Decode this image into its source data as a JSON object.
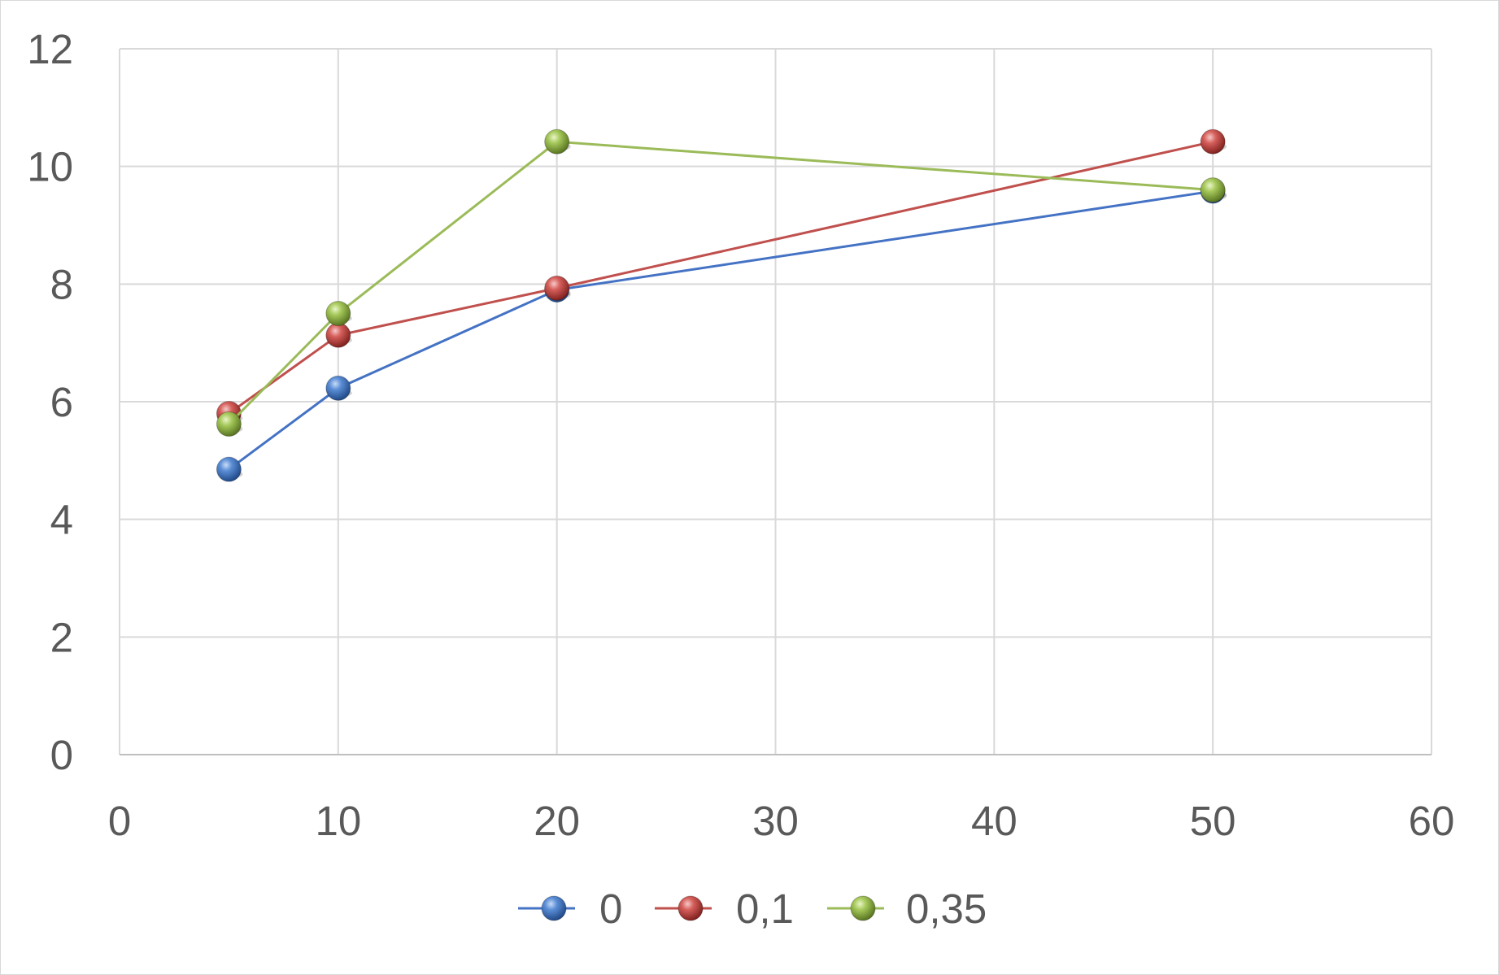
{
  "chart_data": {
    "type": "scatter",
    "mode": "lines+markers",
    "xlim": [
      0,
      60
    ],
    "ylim": [
      0,
      12
    ],
    "x_ticks": [
      "0",
      "10",
      "20",
      "30",
      "40",
      "50",
      "60"
    ],
    "y_ticks": [
      "0",
      "2",
      "4",
      "6",
      "8",
      "10",
      "12"
    ],
    "grid": true,
    "legend_position": "bottom",
    "series": [
      {
        "name": "0",
        "color": "#4472c4",
        "x": [
          5,
          10,
          20,
          50
        ],
        "y": [
          4.85,
          6.23,
          7.9,
          9.58
        ]
      },
      {
        "name": "0,1",
        "color": "#c0504d",
        "x": [
          5,
          10,
          20,
          50
        ],
        "y": [
          5.8,
          7.13,
          7.93,
          10.42
        ]
      },
      {
        "name": "0,35",
        "color": "#9bbb59",
        "x": [
          5,
          10,
          20,
          50
        ],
        "y": [
          5.62,
          7.5,
          10.42,
          9.6
        ]
      }
    ]
  }
}
